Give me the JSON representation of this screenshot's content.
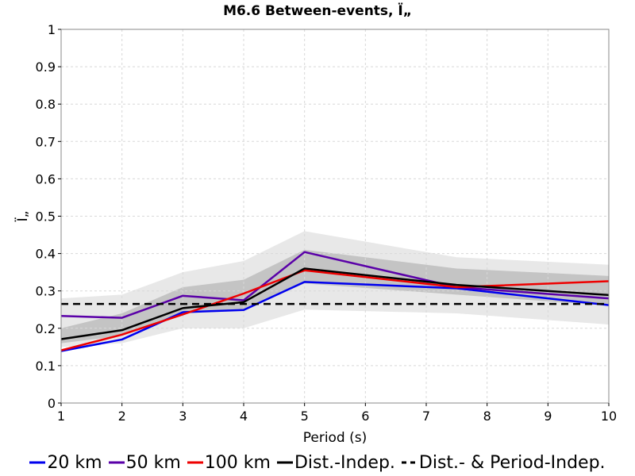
{
  "chart_data": {
    "type": "line",
    "title": "M6.6 Between-events, Ï„",
    "xlabel": "Period (s)",
    "ylabel": "Ï„",
    "xlim": [
      1,
      10
    ],
    "ylim": [
      0,
      1
    ],
    "xticks": [
      "1",
      "2",
      "3",
      "4",
      "5",
      "6",
      "7",
      "8",
      "9",
      "10"
    ],
    "yticks": [
      "0",
      "0.1",
      "0.2",
      "0.3",
      "0.4",
      "0.5",
      "0.6",
      "0.7",
      "0.8",
      "0.9",
      "1"
    ],
    "grid": true,
    "legend_position": "bottom",
    "x": [
      1,
      2,
      3,
      4,
      5,
      7.5,
      10
    ],
    "bands": [
      {
        "fill": "#e8e8e8",
        "upper": [
          0.28,
          0.29,
          0.35,
          0.38,
          0.46,
          0.39,
          0.37
        ],
        "lower": [
          0.15,
          0.16,
          0.2,
          0.2,
          0.25,
          0.24,
          0.21
        ]
      },
      {
        "fill": "#c4c4c4",
        "upper": [
          0.2,
          0.24,
          0.31,
          0.33,
          0.41,
          0.36,
          0.34
        ],
        "lower": [
          0.16,
          0.18,
          0.24,
          0.25,
          0.32,
          0.29,
          0.26
        ]
      }
    ],
    "series": [
      {
        "name": "20 km",
        "color": "#0000ee",
        "dash": "",
        "values": [
          0.139,
          0.17,
          0.243,
          0.249,
          0.324,
          0.307,
          0.262
        ]
      },
      {
        "name": "50 km",
        "color": "#5a00a8",
        "dash": "",
        "values": [
          0.233,
          0.228,
          0.287,
          0.275,
          0.404,
          0.31,
          0.28
        ]
      },
      {
        "name": "100 km",
        "color": "#ee0000",
        "dash": "",
        "values": [
          0.141,
          0.183,
          0.237,
          0.293,
          0.355,
          0.31,
          0.326
        ]
      },
      {
        "name": "Dist.-Indep.",
        "color": "#000000",
        "dash": "",
        "values": [
          0.171,
          0.195,
          0.254,
          0.27,
          0.36,
          0.316,
          0.289
        ]
      },
      {
        "name": "Dist.- & Period-Indep.",
        "color": "#000000",
        "dash": "9,6",
        "values": [
          0.265,
          0.265,
          0.265,
          0.265,
          0.265,
          0.265,
          0.265
        ]
      }
    ]
  }
}
